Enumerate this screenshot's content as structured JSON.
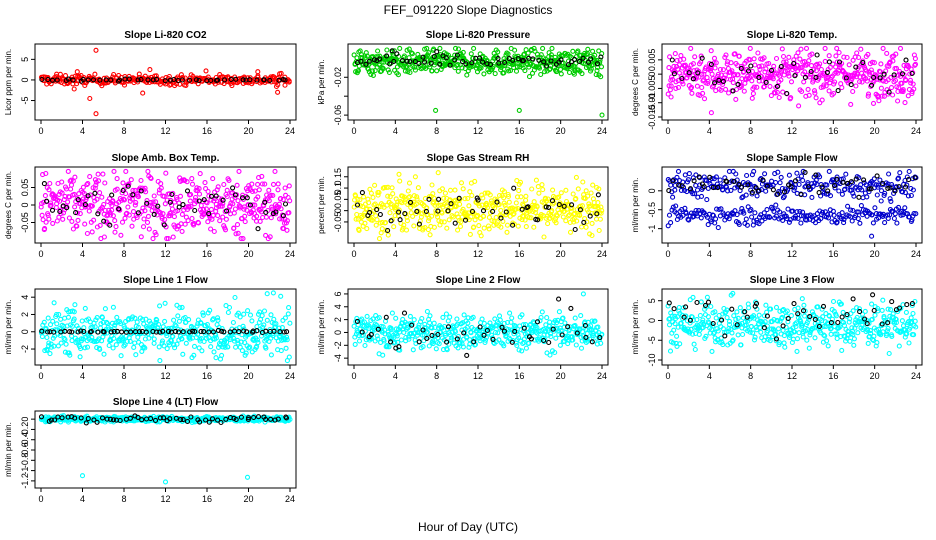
{
  "figure": {
    "title": "FEF_091220  Slope Diagnostics",
    "xlabel": "Hour of Day (UTC)"
  },
  "chart_data": [
    {
      "type": "scatter",
      "title": "Slope Li-820 CO2",
      "xlabel": "",
      "ylabel": "Licor ppm per min.",
      "xlim": [
        0,
        24
      ],
      "ylim": [
        -9,
        8
      ],
      "xticks": [
        0,
        4,
        8,
        12,
        16,
        20,
        24
      ],
      "yticks": [
        -5,
        0,
        5
      ],
      "series": [
        {
          "color": "#ff0000",
          "n": 300,
          "center": 0,
          "spread": 0.6,
          "outliers": [
            [
              5.3,
              7.2
            ],
            [
              5.3,
              -8.2
            ],
            [
              4.7,
              -4.5
            ],
            [
              3.5,
              2.0
            ],
            [
              9.8,
              -3.2
            ],
            [
              15.9,
              2.2
            ],
            [
              20.9,
              2.0
            ],
            [
              22.7,
              -1.6
            ],
            [
              22.8,
              -3.0
            ],
            [
              1.5,
              1.4
            ],
            [
              10.5,
              2.5
            ],
            [
              23.0,
              1.5
            ],
            [
              3.2,
              -2.2
            ]
          ]
        },
        {
          "color": "#000000",
          "n": 48,
          "center": 0,
          "spread": 0.12,
          "outliers": []
        }
      ]
    },
    {
      "type": "scatter",
      "title": "Slope Li-820 Pressure",
      "xlabel": "",
      "ylabel": "kPa per min.",
      "xlim": [
        0,
        24
      ],
      "ylim": [
        -0.062,
        0.012
      ],
      "xticks": [
        0,
        4,
        8,
        12,
        16,
        20,
        24
      ],
      "yticks": [
        -0.06,
        -0.04,
        -0.02
      ],
      "ytick_labels": [
        "-0.06",
        "",
        "-0.02"
      ],
      "series": [
        {
          "color": "#00cc00",
          "n": 480,
          "center": -0.004,
          "spread": 0.0065,
          "outliers": [
            [
              7.9,
              -0.055
            ],
            [
              16.0,
              -0.055
            ],
            [
              24.0,
              -0.06
            ],
            [
              3.9,
              0.008
            ]
          ]
        },
        {
          "color": "#000000",
          "n": 60,
          "center": -0.002,
          "spread": 0.003,
          "outliers": [
            [
              3.7,
              0.008
            ],
            [
              8.0,
              0.007
            ]
          ]
        }
      ]
    },
    {
      "type": "scatter",
      "title": "Slope Li-820 Temp.",
      "xlabel": "",
      "ylabel": "degrees C per min.",
      "xlim": [
        0,
        24
      ],
      "ylim": [
        -0.015,
        0.0095
      ],
      "xticks": [
        0,
        4,
        8,
        12,
        16,
        20,
        24
      ],
      "yticks": [
        -0.015,
        -0.01,
        -0.005,
        0.0,
        0.005
      ],
      "series": [
        {
          "color": "#ff00ff",
          "n": 500,
          "center": 0.0,
          "spread": 0.0042,
          "outliers": [
            [
              4.2,
              -0.0135
            ],
            [
              2.2,
              0.009
            ],
            [
              22.5,
              0.009
            ],
            [
              0.3,
              -0.008
            ]
          ]
        },
        {
          "color": "#000000",
          "n": 45,
          "center": 0.0,
          "spread": 0.0035,
          "outliers": []
        }
      ]
    },
    {
      "type": "scatter",
      "title": "Slope Amb. Box Temp.",
      "xlabel": "",
      "ylabel": "degrees C per min.",
      "xlim": [
        0,
        24
      ],
      "ylim": [
        -0.1,
        0.1
      ],
      "xticks": [
        0,
        4,
        8,
        12,
        16,
        20,
        24
      ],
      "yticks": [
        -0.05,
        0.0,
        0.05
      ],
      "series": [
        {
          "color": "#ff00ff",
          "n": 500,
          "center": 0.0,
          "spread": 0.045,
          "outliers": []
        },
        {
          "color": "#000000",
          "n": 50,
          "center": 0.0,
          "spread": 0.03,
          "outliers": []
        }
      ]
    },
    {
      "type": "scatter",
      "title": "Slope Gas Stream RH",
      "xlabel": "",
      "ylabel": "percent per min.",
      "xlim": [
        0,
        24
      ],
      "ylim": [
        -0.13,
        0.18
      ],
      "xticks": [
        0,
        4,
        8,
        12,
        16,
        20,
        24
      ],
      "yticks": [
        -0.05,
        0.0,
        0.05,
        0.1,
        0.15
      ],
      "series": [
        {
          "color": "#ffff00",
          "n": 500,
          "center": 0.01,
          "spread": 0.055,
          "outliers": []
        },
        {
          "color": "#000000",
          "n": 50,
          "center": 0.0,
          "spread": 0.04,
          "outliers": []
        }
      ]
    },
    {
      "type": "scatter",
      "title": "Slope Sample Flow",
      "xlabel": "",
      "ylabel": "ml/min per min.",
      "xlim": [
        0,
        24
      ],
      "ylim": [
        -1.3,
        0.55
      ],
      "xticks": [
        0,
        4,
        8,
        12,
        16,
        20,
        24
      ],
      "yticks": [
        -1.0,
        -0.5,
        0.0
      ],
      "series": [
        {
          "color": "#0000cc",
          "n": 250,
          "center": 0.15,
          "spread": 0.18,
          "outliers": [
            [
              19.7,
              -1.2
            ]
          ]
        },
        {
          "color": "#0000cc",
          "n": 220,
          "center": -0.65,
          "spread": 0.12,
          "outliers": []
        },
        {
          "color": "#000000",
          "n": 55,
          "center": 0.15,
          "spread": 0.14,
          "outliers": []
        }
      ]
    },
    {
      "type": "scatter",
      "title": "Slope Line 1 Flow",
      "xlabel": "",
      "ylabel": "ml/min per min.",
      "xlim": [
        0,
        24
      ],
      "ylim": [
        -3.5,
        4.6
      ],
      "xticks": [
        0,
        4,
        8,
        12,
        16,
        20,
        24
      ],
      "yticks": [
        -2,
        0,
        2,
        4
      ],
      "series": [
        {
          "color": "#00ffff",
          "n": 480,
          "center": 0.0,
          "spread": 1.35,
          "outliers": [
            [
              21.8,
              4.4
            ],
            [
              22.4,
              4.5
            ],
            [
              23.1,
              4.1
            ]
          ]
        },
        {
          "color": "#000000",
          "n": 60,
          "center": 0.0,
          "spread": 0.05,
          "outliers": []
        }
      ]
    },
    {
      "type": "scatter",
      "title": "Slope Line 2 Flow",
      "xlabel": "",
      "ylabel": "ml/min per min.",
      "xlim": [
        0,
        24
      ],
      "ylim": [
        -4.6,
        6.3
      ],
      "xticks": [
        0,
        4,
        8,
        12,
        16,
        20,
        24
      ],
      "yticks": [
        -4,
        -2,
        0,
        2,
        4,
        6
      ],
      "series": [
        {
          "color": "#00ffff",
          "n": 480,
          "center": 0.0,
          "spread": 1.4,
          "outliers": [
            [
              22.2,
              6.0
            ]
          ]
        },
        {
          "color": "#000000",
          "n": 45,
          "center": 0.3,
          "spread": 1.7,
          "outliers": [
            [
              19.8,
              5.2
            ]
          ]
        }
      ]
    },
    {
      "type": "scatter",
      "title": "Slope Line 3 Flow",
      "xlabel": "",
      "ylabel": "ml/min per min.",
      "xlim": [
        0,
        24
      ],
      "ylim": [
        -10.5,
        7.2
      ],
      "xticks": [
        0,
        4,
        8,
        12,
        16,
        20,
        24
      ],
      "yticks": [
        -10,
        -5,
        0,
        5
      ],
      "series": [
        {
          "color": "#00ffff",
          "n": 480,
          "center": -1.0,
          "spread": 2.8,
          "outliers": [
            [
              13.0,
              5.5
            ]
          ]
        },
        {
          "color": "#000000",
          "n": 45,
          "center": 1.0,
          "spread": 2.5,
          "outliers": [
            [
              19.8,
              6.5
            ]
          ]
        }
      ]
    },
    {
      "type": "scatter",
      "title": "Slope Line 4 (LT) Flow",
      "xlabel": "",
      "ylabel": "ml/min per min.",
      "xlim": [
        0,
        24
      ],
      "ylim": [
        -1.28,
        0.1
      ],
      "xticks": [
        0,
        4,
        8,
        12,
        16,
        20,
        24
      ],
      "yticks": [
        -1.2,
        -1.0,
        -0.8,
        -0.6,
        -0.4,
        -0.2,
        0.0
      ],
      "series": [
        {
          "color": "#00ffff",
          "n": 480,
          "center": 0.0,
          "spread": 0.025,
          "outliers": [
            [
              4.0,
              -1.1
            ],
            [
              12.0,
              -1.22
            ],
            [
              19.9,
              -1.13
            ]
          ]
        },
        {
          "color": "#000000",
          "n": 60,
          "center": 0.0,
          "spread": 0.03,
          "outliers": []
        }
      ]
    }
  ]
}
